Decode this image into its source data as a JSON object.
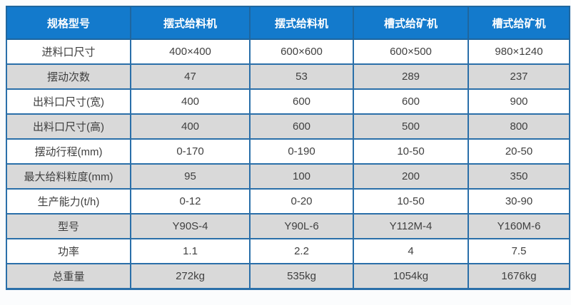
{
  "colors": {
    "header_bg": "#137acc",
    "header_text": "#ffffff",
    "border": "#2a6fa9",
    "row_bg": "#ffffff",
    "row_alt_bg": "#d9d9d9",
    "cell_text": "#404040"
  },
  "table": {
    "header": [
      "规格型号",
      "摆式给料机",
      "摆式给料机",
      "槽式给矿机",
      "槽式给矿机"
    ],
    "rows": [
      {
        "label": "进料口尺寸",
        "values": [
          "400×400",
          "600×600",
          "600×500",
          "980×1240"
        ]
      },
      {
        "label": "摆动次数",
        "values": [
          "47",
          "53",
          "289",
          "237"
        ]
      },
      {
        "label": "出料口尺寸(宽)",
        "values": [
          "400",
          "600",
          "600",
          "900"
        ]
      },
      {
        "label": "出料口尺寸(高)",
        "values": [
          "400",
          "600",
          "500",
          "800"
        ]
      },
      {
        "label": "摆动行程(mm)",
        "values": [
          "0-170",
          "0-190",
          "10-50",
          "20-50"
        ]
      },
      {
        "label": "最大给料粒度(mm)",
        "values": [
          "95",
          "100",
          "200",
          "350"
        ]
      },
      {
        "label": "生产能力(t/h)",
        "values": [
          "0-12",
          "0-20",
          "10-50",
          "30-90"
        ]
      },
      {
        "label": "型号",
        "values": [
          "Y90S-4",
          "Y90L-6",
          "Y112M-4",
          "Y160M-6"
        ]
      },
      {
        "label": "功率",
        "values": [
          "1.1",
          "2.2",
          "4",
          "7.5"
        ]
      },
      {
        "label": "总重量",
        "values": [
          "272kg",
          "535kg",
          "1054kg",
          "1676kg"
        ]
      }
    ]
  }
}
